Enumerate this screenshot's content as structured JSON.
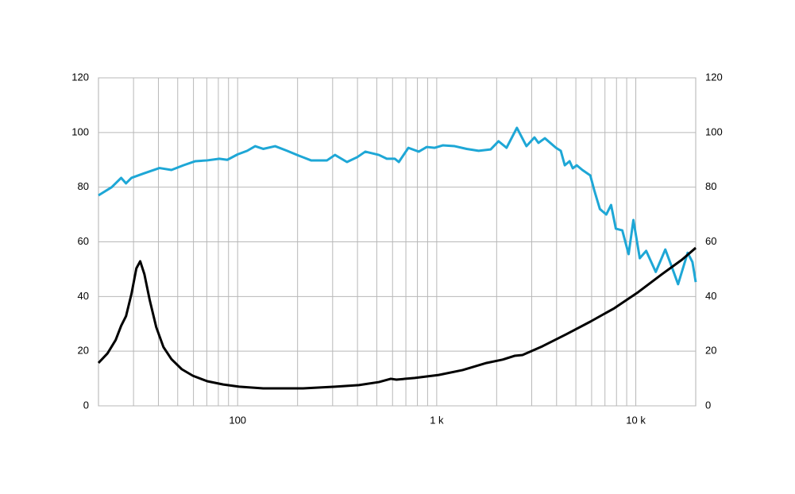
{
  "chart_data": {
    "type": "line",
    "log_x": true,
    "grid": true,
    "xlim": [
      20,
      20000
    ],
    "xticks": [
      {
        "value": 100,
        "label": "100"
      },
      {
        "value": 1000,
        "label": "1 k"
      },
      {
        "value": 10000,
        "label": "10 k"
      }
    ],
    "xminor": [
      30,
      40,
      50,
      60,
      70,
      80,
      90,
      200,
      300,
      400,
      500,
      600,
      700,
      800,
      900,
      2000,
      3000,
      4000,
      5000,
      6000,
      7000,
      8000,
      9000
    ],
    "ylim": [
      0,
      120
    ],
    "yticks": [
      0,
      20,
      40,
      60,
      80,
      100,
      120
    ],
    "y2lim": [
      0,
      120
    ],
    "y2ticks": [
      0,
      20,
      40,
      60,
      80,
      100,
      120
    ],
    "series": [
      {
        "color": "#1ea7d6",
        "x": [
          20,
          23.3,
          26,
          27.5,
          29.3,
          33.7,
          40.5,
          46.5,
          53.4,
          61.3,
          70.4,
          80.9,
          88.7,
          100,
          111.7,
          122.5,
          134.4,
          154.3,
          177.2,
          203.5,
          233.7,
          256.3,
          281.1,
          308.3,
          354.1,
          399.2,
          437.8,
          512.2,
          561.6,
          616,
          645.1,
          720.5,
          812.5,
          891,
          977.2,
          1072,
          1231,
          1414,
          1624,
          1865,
          2045,
          2243,
          2528,
          2824,
          3097,
          3243,
          3493,
          3974,
          4200,
          4399,
          4649,
          4825,
          5052,
          5389,
          5908,
          6189,
          6601,
          7109,
          7513,
          7940,
          8551,
          9203,
          9727,
          10471,
          11276,
          12596,
          14069,
          15153,
          16311,
          18219,
          19258,
          20000
        ],
        "values": [
          77,
          80,
          83.4,
          81.4,
          83.4,
          85,
          87,
          86.3,
          88,
          89.5,
          89.8,
          90.4,
          90,
          92,
          93.3,
          95,
          94,
          95,
          93.3,
          91.5,
          89.8,
          89.8,
          89.8,
          91.8,
          89.2,
          91,
          93,
          91.8,
          90.4,
          90.4,
          89.2,
          94.4,
          93,
          94.7,
          94.4,
          95.3,
          95,
          94,
          93.3,
          93.8,
          96.8,
          94.4,
          101.7,
          95,
          98.2,
          96.2,
          97.9,
          94.4,
          93.3,
          88,
          89.5,
          86.9,
          88,
          86.3,
          84.3,
          78.8,
          72,
          70,
          73.5,
          64.8,
          64.2,
          55.5,
          68,
          54,
          56.7,
          49,
          57.2,
          50.9,
          44.5,
          56,
          52.6,
          45.3
        ]
      },
      {
        "color": "#000000",
        "x": [
          20,
          22.2,
          24.4,
          26,
          27.5,
          29.3,
          31,
          32.4,
          34,
          36.2,
          39,
          42.4,
          46.5,
          52.4,
          59.6,
          70.4,
          84.7,
          101.9,
          134.4,
          213.2,
          308.3,
          406.7,
          512.2,
          588.1,
          627.6,
          775.9,
          1023,
          1350,
          1780,
          2142,
          2459,
          2697,
          3398,
          4480,
          5908,
          7795,
          10280,
          13563,
          17083,
          20000
        ],
        "values": [
          15.7,
          19.2,
          24.1,
          29.3,
          32.8,
          41,
          50.3,
          52.9,
          48.2,
          38.6,
          28.8,
          21.5,
          17.1,
          13.4,
          11,
          9,
          7.8,
          7,
          6.4,
          6.4,
          7,
          7.6,
          8.7,
          9.9,
          9.6,
          10.2,
          11.3,
          13.1,
          15.7,
          16.9,
          18.3,
          18.6,
          21.8,
          26.2,
          30.8,
          35.7,
          41.6,
          48.2,
          53.5,
          57.8
        ]
      }
    ]
  }
}
